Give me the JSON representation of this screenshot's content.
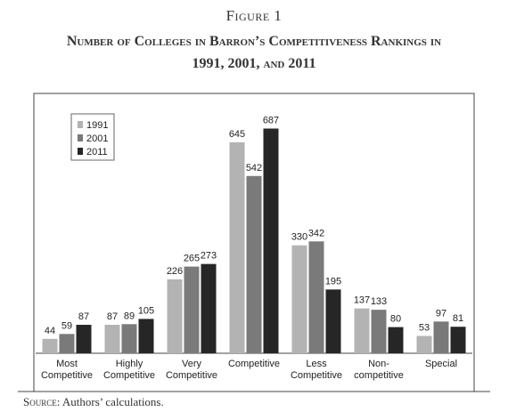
{
  "chart_data": {
    "type": "bar",
    "figure_label": "Figure 1",
    "title": "Number of Colleges in Barron’s Competitiveness Rankings in 1991, 2001, and 2011",
    "categories": [
      "Most Competitive",
      "Highly Competitive",
      "Very Competitive",
      "Competitive",
      "Less Competitive",
      "Non-competitive",
      "Special"
    ],
    "series": [
      {
        "name": "1991",
        "color": "#b3b3b3",
        "values": [
          44,
          87,
          226,
          645,
          330,
          137,
          53
        ]
      },
      {
        "name": "2001",
        "color": "#7a7a7a",
        "values": [
          59,
          89,
          265,
          542,
          342,
          133,
          97
        ]
      },
      {
        "name": "2011",
        "color": "#262626",
        "values": [
          87,
          105,
          273,
          687,
          195,
          80,
          81
        ]
      }
    ],
    "ylim": [
      0,
      740
    ],
    "legend": "top-left",
    "source_label": "Source:",
    "source": "Authors’ calculations."
  }
}
